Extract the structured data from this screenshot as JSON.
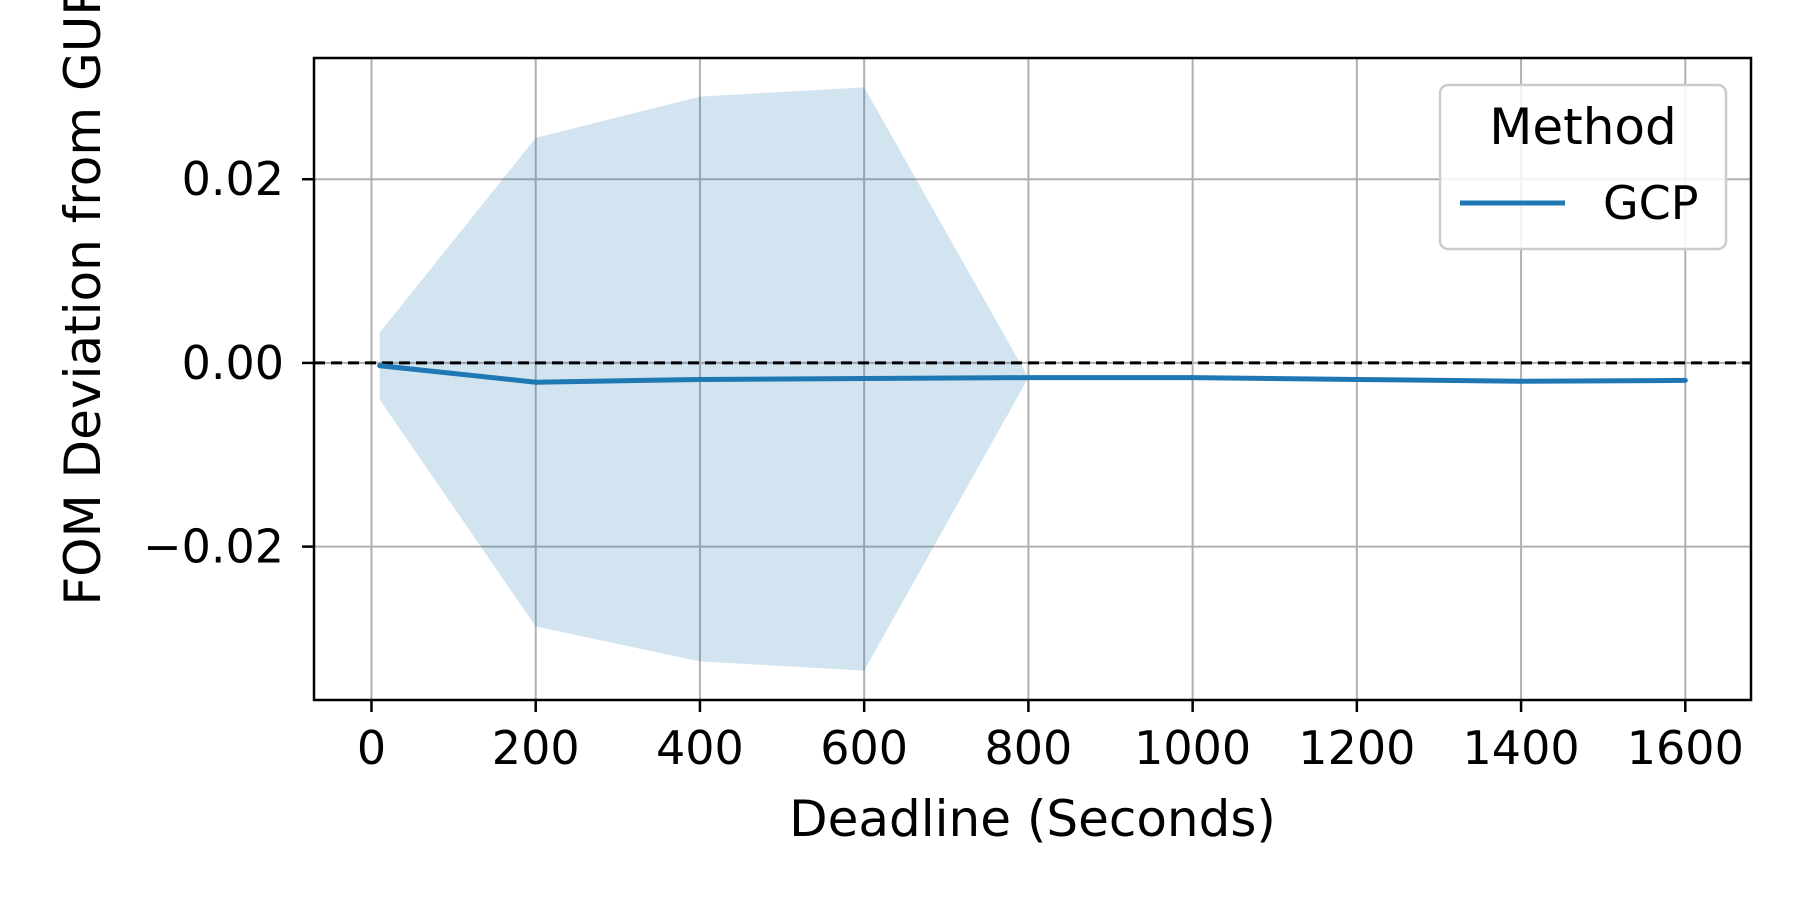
{
  "chart_data": {
    "type": "line",
    "xlabel": "Deadline (Seconds)",
    "ylabel": "FOM Deviation from GUROBI",
    "xlim": [
      -70,
      1680
    ],
    "ylim": [
      -0.0367,
      0.0332
    ],
    "xticks": [
      0,
      200,
      400,
      600,
      800,
      1000,
      1200,
      1400,
      1600
    ],
    "xtick_labels": [
      "0",
      "200",
      "400",
      "600",
      "800",
      "1000",
      "1200",
      "1400",
      "1600"
    ],
    "yticks": [
      -0.02,
      0.0,
      0.02
    ],
    "ytick_labels": [
      "−0.02",
      "0.00",
      "0.02"
    ],
    "grid": true,
    "reference_line": {
      "y": 0.0,
      "style": "dashed",
      "color": "#000000"
    },
    "legend": {
      "title": "Method",
      "position": "top-right"
    },
    "series": [
      {
        "name": "GCP",
        "color": "#1f77b4",
        "band_color": "#1f77b4",
        "x": [
          10,
          200,
          400,
          600,
          800,
          1000,
          1200,
          1400,
          1600
        ],
        "y": [
          -0.0003,
          -0.0021,
          -0.0018,
          -0.0017,
          -0.0016,
          -0.0016,
          -0.0018,
          -0.002,
          -0.0019
        ],
        "band_upper": [
          0.0033,
          0.0245,
          0.029,
          0.03,
          -0.0016,
          -0.0016,
          -0.0018,
          -0.002,
          -0.0019
        ],
        "band_lower": [
          -0.004,
          -0.0287,
          -0.0325,
          -0.0335,
          -0.0016,
          -0.0016,
          -0.0018,
          -0.002,
          -0.0019
        ]
      }
    ]
  }
}
